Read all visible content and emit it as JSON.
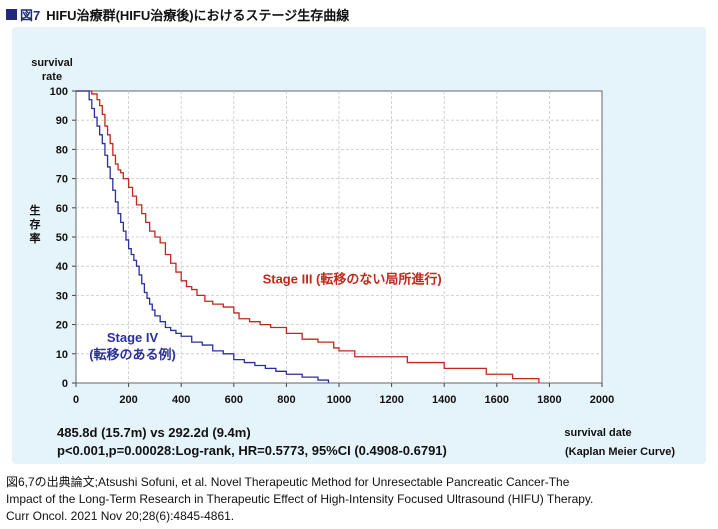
{
  "figure": {
    "number": "図7",
    "title": "HIFU治療群(HIFU治療後)におけるステージ生存曲線"
  },
  "stats": {
    "line1": "485.8d (15.7m) vs 292.2d (9.4m)",
    "line2": "p<0.001,p=0.00028:Log-rank, HR=0.5773, 95%CI (0.4908-0.6791)"
  },
  "caption": {
    "line1": "図6,7の出典論文;Atsushi Sofuni, et al. Novel Therapeutic Method for Unresectable Pancreatic Cancer-The",
    "line2": "Impact of the Long-Term Research in Therapeutic Effect of High-Intensity Focused Ultrasound (HIFU) Therapy.",
    "line3": "Curr Oncol. 2021 Nov 20;28(6):4845-4861."
  },
  "chart_data": {
    "type": "line",
    "title": "",
    "ylabel_top": [
      "survival",
      "rate"
    ],
    "ylabel_side": [
      "生",
      "存",
      "率"
    ],
    "xlabel": "survival date",
    "xlabel_note": "(Kaplan Meier Curve)",
    "xlim": [
      0,
      2000
    ],
    "ylim": [
      0,
      100
    ],
    "xticks": [
      0,
      200,
      400,
      600,
      800,
      1000,
      1200,
      1400,
      1600,
      1800,
      2000
    ],
    "yticks": [
      0,
      10,
      20,
      30,
      40,
      50,
      60,
      70,
      80,
      90,
      100
    ],
    "grid": true,
    "series": [
      {
        "name": "Stage III (転移のない局所進行)",
        "label_lines": [
          "Stage III (転移のない局所進行)"
        ],
        "color": "#c0281e",
        "step_x": [
          0,
          60,
          80,
          90,
          100,
          110,
          120,
          130,
          140,
          150,
          160,
          170,
          180,
          200,
          215,
          230,
          250,
          265,
          280,
          300,
          320,
          340,
          360,
          380,
          400,
          420,
          440,
          460,
          490,
          520,
          560,
          600,
          620,
          660,
          700,
          740,
          800,
          860,
          920,
          980,
          1000,
          1060,
          1260,
          1400,
          1560,
          1660,
          1760
        ],
        "step_y": [
          100,
          99,
          97,
          95,
          92,
          88,
          85,
          82,
          78,
          75,
          73,
          72,
          70,
          67,
          64,
          61,
          58,
          55,
          52,
          50,
          48,
          44,
          41,
          38,
          35,
          33,
          32,
          30,
          28,
          27,
          26,
          24,
          22,
          21,
          20,
          19,
          17,
          15,
          14,
          12,
          11,
          9,
          7,
          5,
          3,
          1.5,
          0
        ],
        "label_anchor": [
          1050,
          34
        ]
      },
      {
        "name": "Stage IV (転移のある例)",
        "label_lines": [
          "Stage IV",
          "(転移のある例)"
        ],
        "color": "#2b2f9e",
        "step_x": [
          0,
          50,
          60,
          70,
          80,
          90,
          100,
          110,
          120,
          130,
          140,
          150,
          160,
          170,
          180,
          190,
          200,
          210,
          220,
          230,
          240,
          250,
          260,
          270,
          280,
          290,
          300,
          320,
          340,
          360,
          380,
          400,
          440,
          480,
          520,
          560,
          600,
          640,
          680,
          720,
          760,
          800,
          860,
          920,
          960
        ],
        "step_y": [
          100,
          97,
          94,
          91,
          88,
          85,
          82,
          78,
          74,
          70,
          66,
          62,
          58,
          55,
          52,
          49,
          46,
          44,
          42,
          40,
          37,
          34,
          31,
          29,
          27,
          25,
          23,
          21,
          19,
          18,
          17,
          16,
          14,
          13,
          11,
          10,
          8,
          7,
          6,
          5,
          4,
          3,
          2,
          1,
          0
        ],
        "label_anchor": [
          215,
          14
        ]
      }
    ]
  }
}
